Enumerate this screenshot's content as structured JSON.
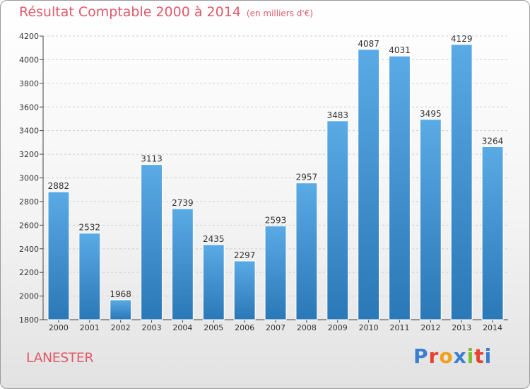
{
  "header": {
    "title": "Résultat Comptable 2000 à 2014",
    "subtitle": "(en milliers d'€)"
  },
  "footer": {
    "commune": "LANESTER",
    "logo_letters": [
      "P",
      "r",
      "o",
      "x",
      "i",
      "t",
      "i"
    ]
  },
  "colors": {
    "title": "#e05a6a",
    "bar_top": "#5aaae6",
    "bar_bottom": "#2a78b6",
    "logo": [
      "#3b7fd1",
      "#e8422e",
      "#f0a019",
      "#3b7fd1",
      "#7bbf2f",
      "#e8422e",
      "#3b7fd1"
    ]
  },
  "chart_data": {
    "type": "bar",
    "title": "Résultat Comptable 2000 à 2014",
    "ylabel": "en milliers d'€",
    "xlabel": "",
    "categories": [
      "2000",
      "2001",
      "2002",
      "2003",
      "2004",
      "2005",
      "2006",
      "2007",
      "2008",
      "2009",
      "2010",
      "2011",
      "2012",
      "2013",
      "2014"
    ],
    "values": [
      2882,
      2532,
      1968,
      3113,
      2739,
      2435,
      2297,
      2593,
      2957,
      3483,
      4087,
      4031,
      3495,
      4129,
      3264
    ],
    "ylim": [
      1800,
      4200
    ],
    "yticks": [
      1800,
      2000,
      2200,
      2400,
      2600,
      2800,
      3000,
      3200,
      3400,
      3600,
      3800,
      4000,
      4200
    ],
    "grid": true
  }
}
